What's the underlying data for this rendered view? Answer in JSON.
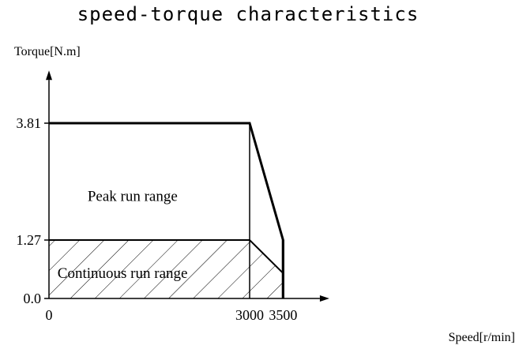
{
  "chart_data": {
    "type": "area",
    "title": "speed-torque characteristics",
    "xlabel": "Speed[r/min]",
    "ylabel": "Torque[N.m]",
    "xlim": [
      0,
      4050
    ],
    "ylim": [
      0,
      4.75
    ],
    "x_ticks": [
      {
        "value": 0,
        "label": "0"
      },
      {
        "value": 3000,
        "label": "3000"
      },
      {
        "value": 3500,
        "label": "3500"
      }
    ],
    "y_ticks": [
      {
        "value": 0,
        "label": "0.0"
      },
      {
        "value": 1.27,
        "label": "1.27"
      },
      {
        "value": 3.81,
        "label": "3.81"
      }
    ],
    "series": [
      {
        "name": "Peak run range",
        "x": [
          0,
          3000,
          3500,
          3500
        ],
        "y": [
          3.81,
          3.81,
          1.27,
          0
        ],
        "hatched": false
      },
      {
        "name": "Continuous run range",
        "x": [
          0,
          3000,
          3500,
          3500
        ],
        "y": [
          1.27,
          1.27,
          0.55,
          0
        ],
        "hatched": true
      }
    ]
  }
}
